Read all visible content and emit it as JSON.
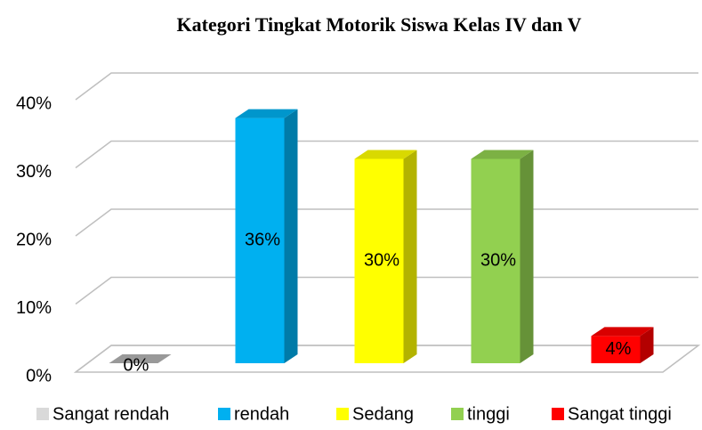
{
  "chart_data": {
    "type": "bar3d",
    "title": "Kategori Tingkat Motorik  Siswa Kelas IV dan V",
    "categories": [
      "Sangat rendah",
      "rendah",
      "Sedang",
      "tinggi",
      "Sangat tinggi"
    ],
    "values": [
      0,
      36,
      30,
      30,
      4
    ],
    "value_labels": [
      "0%",
      "36%",
      "30%",
      "30%",
      "4%"
    ],
    "colors": [
      "#bfbfbf",
      "#00b0f0",
      "#ffff00",
      "#92d050",
      "#ff0000"
    ],
    "ylim": [
      0,
      40
    ],
    "yticks": [
      {
        "value": 0,
        "label": "0%"
      },
      {
        "value": 10,
        "label": "10%"
      },
      {
        "value": 20,
        "label": "20%"
      },
      {
        "value": 30,
        "label": "30%"
      },
      {
        "value": 40,
        "label": "40%"
      }
    ],
    "grid": true,
    "legend": "bottom"
  }
}
